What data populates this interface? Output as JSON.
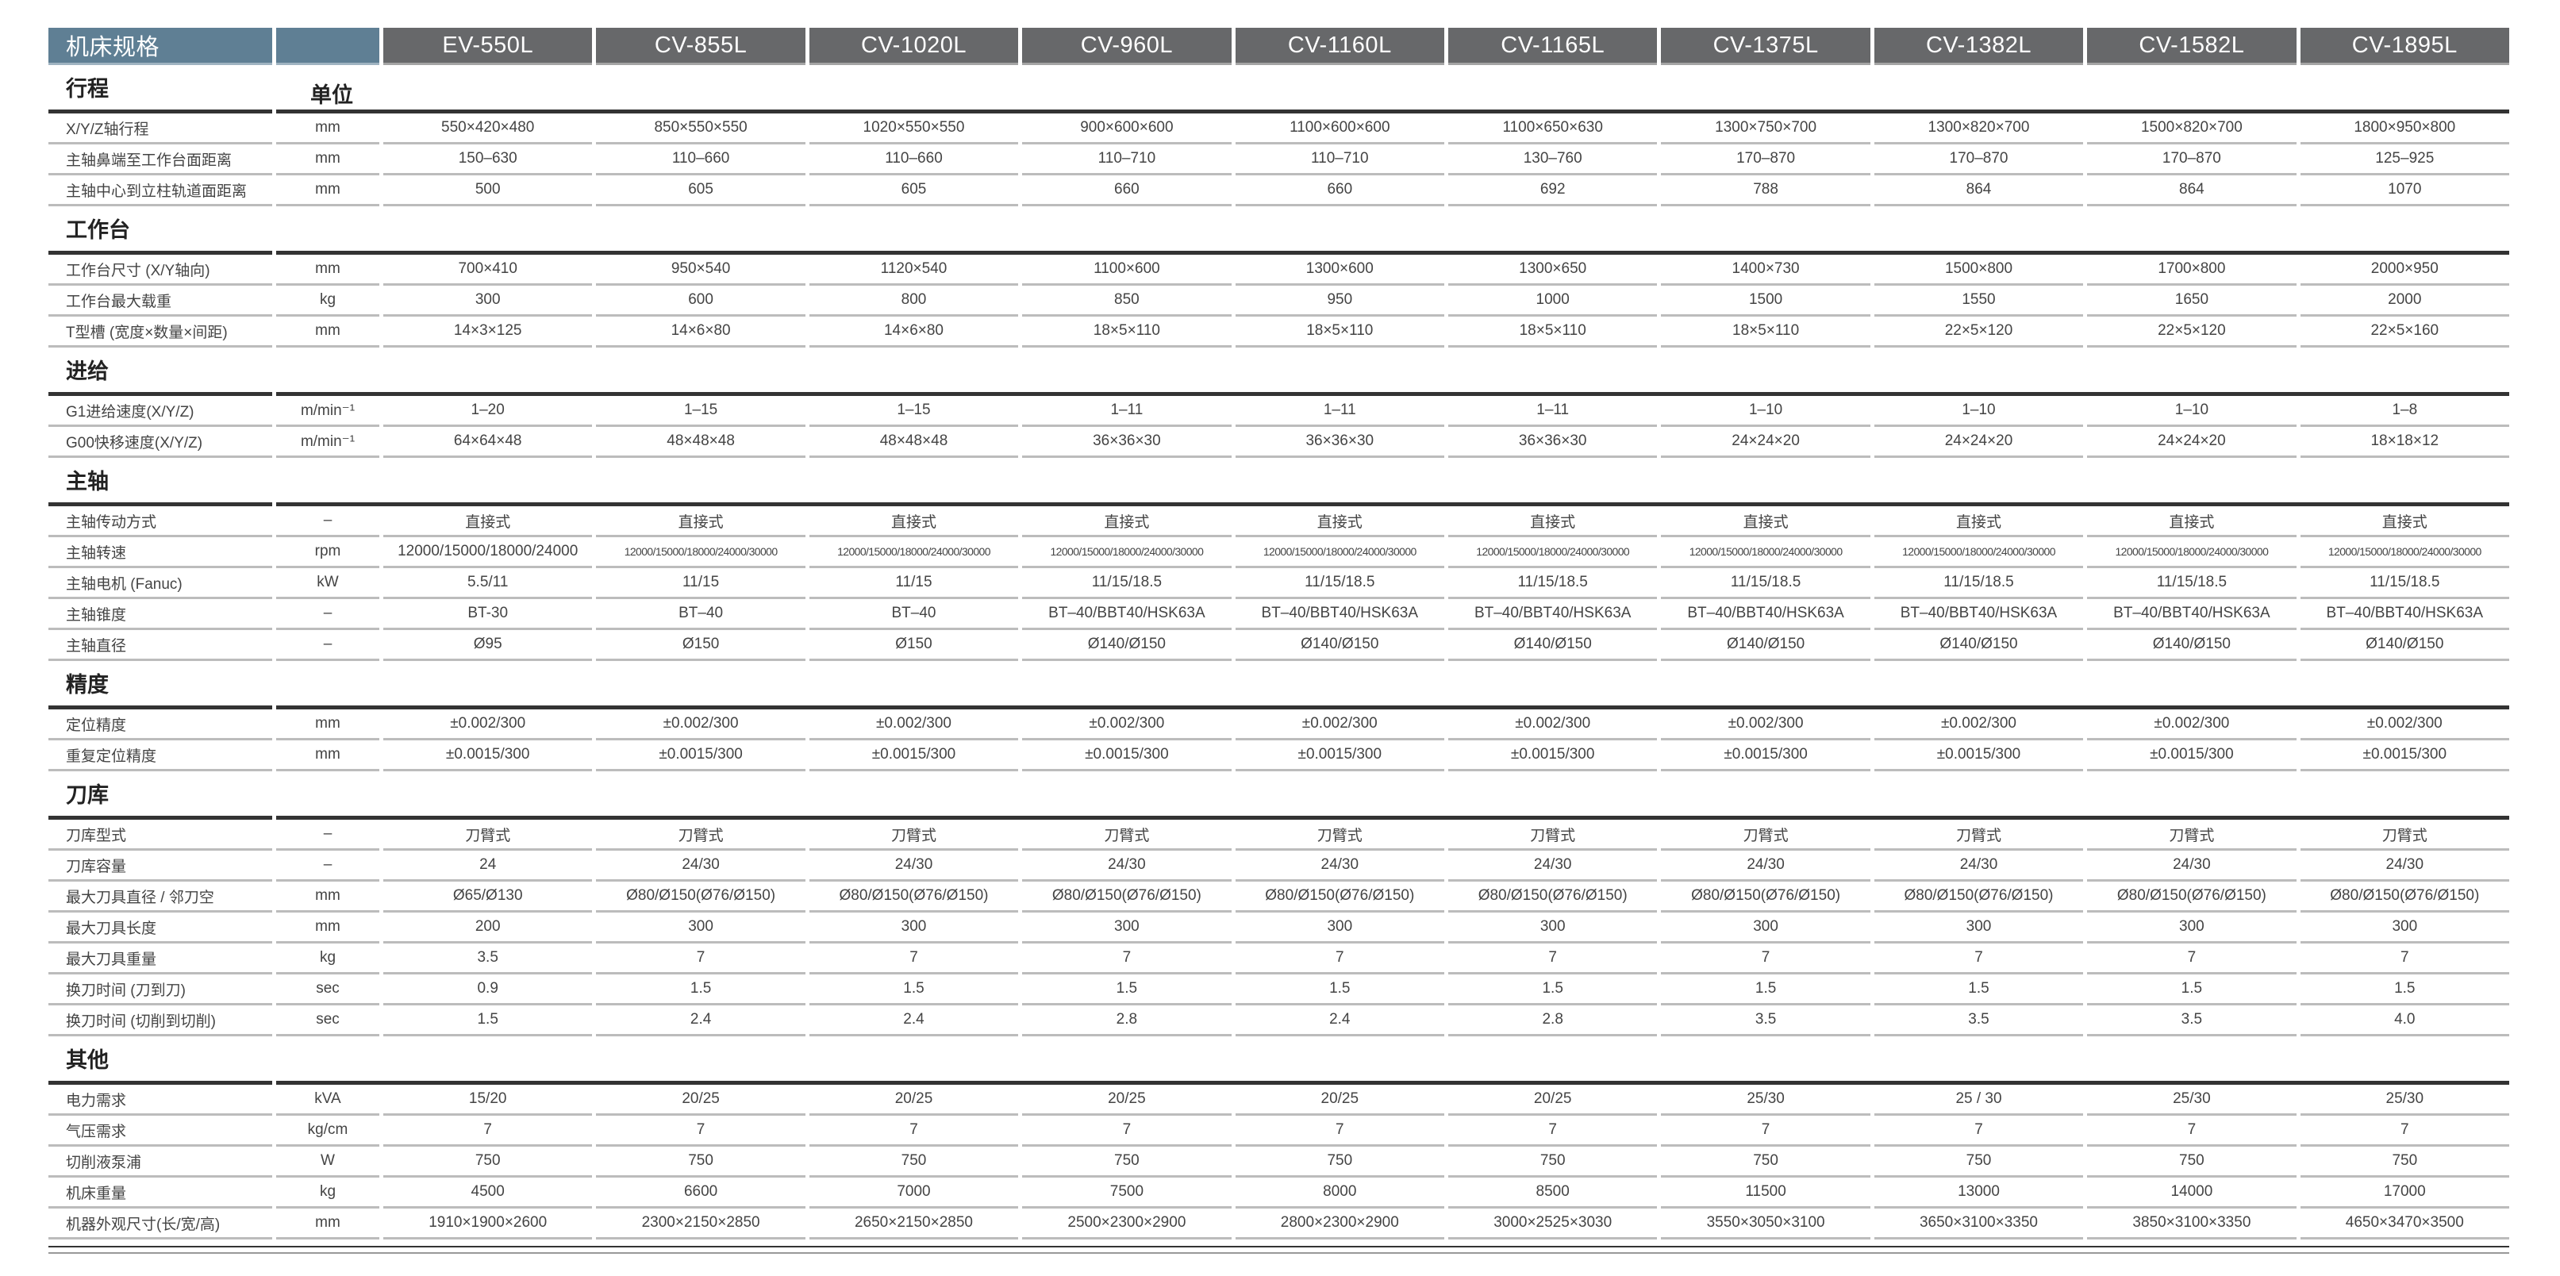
{
  "header": {
    "title": "机床规格",
    "models": [
      "EV-550L",
      "CV-855L",
      "CV-1020L",
      "CV-960L",
      "CV-1160L",
      "CV-1165L",
      "CV-1375L",
      "CV-1382L",
      "CV-1582L",
      "CV-1895L"
    ]
  },
  "colors": {
    "header_blue": "#5f7f94",
    "header_gray": "#67686a",
    "rule_dark": "#333333",
    "rule_light": "#bcbcbc"
  },
  "sections": [
    {
      "title": "行程",
      "unit_header": "单位",
      "rows": [
        {
          "label": "X/Y/Z轴行程",
          "unit": "mm",
          "values": [
            "550×420×480",
            "850×550×550",
            "1020×550×550",
            "900×600×600",
            "1100×600×600",
            "1100×650×630",
            "1300×750×700",
            "1300×820×700",
            "1500×820×700",
            "1800×950×800"
          ]
        },
        {
          "label": "主轴鼻端至工作台面距离",
          "unit": "mm",
          "values": [
            "150–630",
            "110–660",
            "110–660",
            "110–710",
            "110–710",
            "130–760",
            "170–870",
            "170–870",
            "170–870",
            "125–925"
          ]
        },
        {
          "label": "主轴中心到立柱轨道面距离",
          "unit": "mm",
          "values": [
            "500",
            "605",
            "605",
            "660",
            "660",
            "692",
            "788",
            "864",
            "864",
            "1070"
          ]
        }
      ]
    },
    {
      "title": "工作台",
      "rows": [
        {
          "label": "工作台尺寸 (X/Y轴向)",
          "unit": "mm",
          "values": [
            "700×410",
            "950×540",
            "1120×540",
            "1100×600",
            "1300×600",
            "1300×650",
            "1400×730",
            "1500×800",
            "1700×800",
            "2000×950"
          ]
        },
        {
          "label": "工作台最大载重",
          "unit": "kg",
          "values": [
            "300",
            "600",
            "800",
            "850",
            "950",
            "1000",
            "1500",
            "1550",
            "1650",
            "2000"
          ]
        },
        {
          "label": "T型槽 (宽度×数量×间距)",
          "unit": "mm",
          "values": [
            "14×3×125",
            "14×6×80",
            "14×6×80",
            "18×5×110",
            "18×5×110",
            "18×5×110",
            "18×5×110",
            "22×5×120",
            "22×5×120",
            "22×5×160"
          ]
        }
      ]
    },
    {
      "title": "进给",
      "rows": [
        {
          "label": "G1进给速度(X/Y/Z)",
          "unit": "m/min⁻¹",
          "values": [
            "1–20",
            "1–15",
            "1–15",
            "1–11",
            "1–11",
            "1–11",
            "1–10",
            "1–10",
            "1–10",
            "1–8"
          ]
        },
        {
          "label": "G00快移速度(X/Y/Z)",
          "unit": "m/min⁻¹",
          "values": [
            "64×64×48",
            "48×48×48",
            "48×48×48",
            "36×36×30",
            "36×36×30",
            "36×36×30",
            "24×24×20",
            "24×24×20",
            "24×24×20",
            "18×18×12"
          ]
        }
      ]
    },
    {
      "title": "主轴",
      "rows": [
        {
          "label": "主轴传动方式",
          "unit": "–",
          "values": [
            "直接式",
            "直接式",
            "直接式",
            "直接式",
            "直接式",
            "直接式",
            "直接式",
            "直接式",
            "直接式",
            "直接式"
          ]
        },
        {
          "label": "主轴转速",
          "unit": "rpm",
          "values": [
            "12000/15000/18000/24000",
            "12000/15000/18000/24000/30000",
            "12000/15000/18000/24000/30000",
            "12000/15000/18000/24000/30000",
            "12000/15000/18000/24000/30000",
            "12000/15000/18000/24000/30000",
            "12000/15000/18000/24000/30000",
            "12000/15000/18000/24000/30000",
            "12000/15000/18000/24000/30000",
            "12000/15000/18000/24000/30000"
          ]
        },
        {
          "label": "主轴电机 (Fanuc)",
          "unit": "kW",
          "values": [
            "5.5/11",
            "11/15",
            "11/15",
            "11/15/18.5",
            "11/15/18.5",
            "11/15/18.5",
            "11/15/18.5",
            "11/15/18.5",
            "11/15/18.5",
            "11/15/18.5"
          ]
        },
        {
          "label": "主轴锥度",
          "unit": "–",
          "values": [
            "BT-30",
            "BT–40",
            "BT–40",
            "BT–40/BBT40/HSK63A",
            "BT–40/BBT40/HSK63A",
            "BT–40/BBT40/HSK63A",
            "BT–40/BBT40/HSK63A",
            "BT–40/BBT40/HSK63A",
            "BT–40/BBT40/HSK63A",
            "BT–40/BBT40/HSK63A"
          ]
        },
        {
          "label": "主轴直径",
          "unit": "–",
          "values": [
            "Ø95",
            "Ø150",
            "Ø150",
            "Ø140/Ø150",
            "Ø140/Ø150",
            "Ø140/Ø150",
            "Ø140/Ø150",
            "Ø140/Ø150",
            "Ø140/Ø150",
            "Ø140/Ø150"
          ]
        }
      ]
    },
    {
      "title": "精度",
      "rows": [
        {
          "label": "定位精度",
          "unit": "mm",
          "values": [
            "±0.002/300",
            "±0.002/300",
            "±0.002/300",
            "±0.002/300",
            "±0.002/300",
            "±0.002/300",
            "±0.002/300",
            "±0.002/300",
            "±0.002/300",
            "±0.002/300"
          ]
        },
        {
          "label": "重复定位精度",
          "unit": "mm",
          "values": [
            "±0.0015/300",
            "±0.0015/300",
            "±0.0015/300",
            "±0.0015/300",
            "±0.0015/300",
            "±0.0015/300",
            "±0.0015/300",
            "±0.0015/300",
            "±0.0015/300",
            "±0.0015/300"
          ]
        }
      ]
    },
    {
      "title": "刀库",
      "rows": [
        {
          "label": "刀库型式",
          "unit": "–",
          "values": [
            "刀臂式",
            "刀臂式",
            "刀臂式",
            "刀臂式",
            "刀臂式",
            "刀臂式",
            "刀臂式",
            "刀臂式",
            "刀臂式",
            "刀臂式"
          ]
        },
        {
          "label": "刀库容量",
          "unit": "–",
          "values": [
            "24",
            "24/30",
            "24/30",
            "24/30",
            "24/30",
            "24/30",
            "24/30",
            "24/30",
            "24/30",
            "24/30"
          ]
        },
        {
          "label": "最大刀具直径 / 邻刀空",
          "unit": "mm",
          "values": [
            "Ø65/Ø130",
            "Ø80/Ø150(Ø76/Ø150)",
            "Ø80/Ø150(Ø76/Ø150)",
            "Ø80/Ø150(Ø76/Ø150)",
            "Ø80/Ø150(Ø76/Ø150)",
            "Ø80/Ø150(Ø76/Ø150)",
            "Ø80/Ø150(Ø76/Ø150)",
            "Ø80/Ø150(Ø76/Ø150)",
            "Ø80/Ø150(Ø76/Ø150)",
            "Ø80/Ø150(Ø76/Ø150)"
          ]
        },
        {
          "label": "最大刀具长度",
          "unit": "mm",
          "values": [
            "200",
            "300",
            "300",
            "300",
            "300",
            "300",
            "300",
            "300",
            "300",
            "300"
          ]
        },
        {
          "label": "最大刀具重量",
          "unit": "kg",
          "values": [
            "3.5",
            "7",
            "7",
            "7",
            "7",
            "7",
            "7",
            "7",
            "7",
            "7"
          ]
        },
        {
          "label": "换刀时间 (刀到刀)",
          "unit": "sec",
          "values": [
            "0.9",
            "1.5",
            "1.5",
            "1.5",
            "1.5",
            "1.5",
            "1.5",
            "1.5",
            "1.5",
            "1.5"
          ]
        },
        {
          "label": "换刀时间 (切削到切削)",
          "unit": "sec",
          "values": [
            "1.5",
            "2.4",
            "2.4",
            "2.8",
            "2.4",
            "2.8",
            "3.5",
            "3.5",
            "3.5",
            "4.0"
          ]
        }
      ]
    },
    {
      "title": "其他",
      "rows": [
        {
          "label": "电力需求",
          "unit": "kVA",
          "values": [
            "15/20",
            "20/25",
            "20/25",
            "20/25",
            "20/25",
            "20/25",
            "25/30",
            "25 / 30",
            "25/30",
            "25/30"
          ]
        },
        {
          "label": "气压需求",
          "unit": "kg/cm",
          "values": [
            "7",
            "7",
            "7",
            "7",
            "7",
            "7",
            "7",
            "7",
            "7",
            "7"
          ]
        },
        {
          "label": "切削液泵浦",
          "unit": "W",
          "values": [
            "750",
            "750",
            "750",
            "750",
            "750",
            "750",
            "750",
            "750",
            "750",
            "750"
          ]
        },
        {
          "label": "机床重量",
          "unit": "kg",
          "values": [
            "4500",
            "6600",
            "7000",
            "7500",
            "8000",
            "8500",
            "11500",
            "13000",
            "14000",
            "17000"
          ]
        },
        {
          "label": "机器外观尺寸(长/宽/高)",
          "unit": "mm",
          "values": [
            "1910×1900×2600",
            "2300×2150×2850",
            "2650×2150×2850",
            "2500×2300×2900",
            "2800×2300×2900",
            "3000×2525×3030",
            "3550×3050×3100",
            "3650×3100×3350",
            "3850×3100×3350",
            "4650×3470×3500"
          ]
        }
      ]
    }
  ]
}
